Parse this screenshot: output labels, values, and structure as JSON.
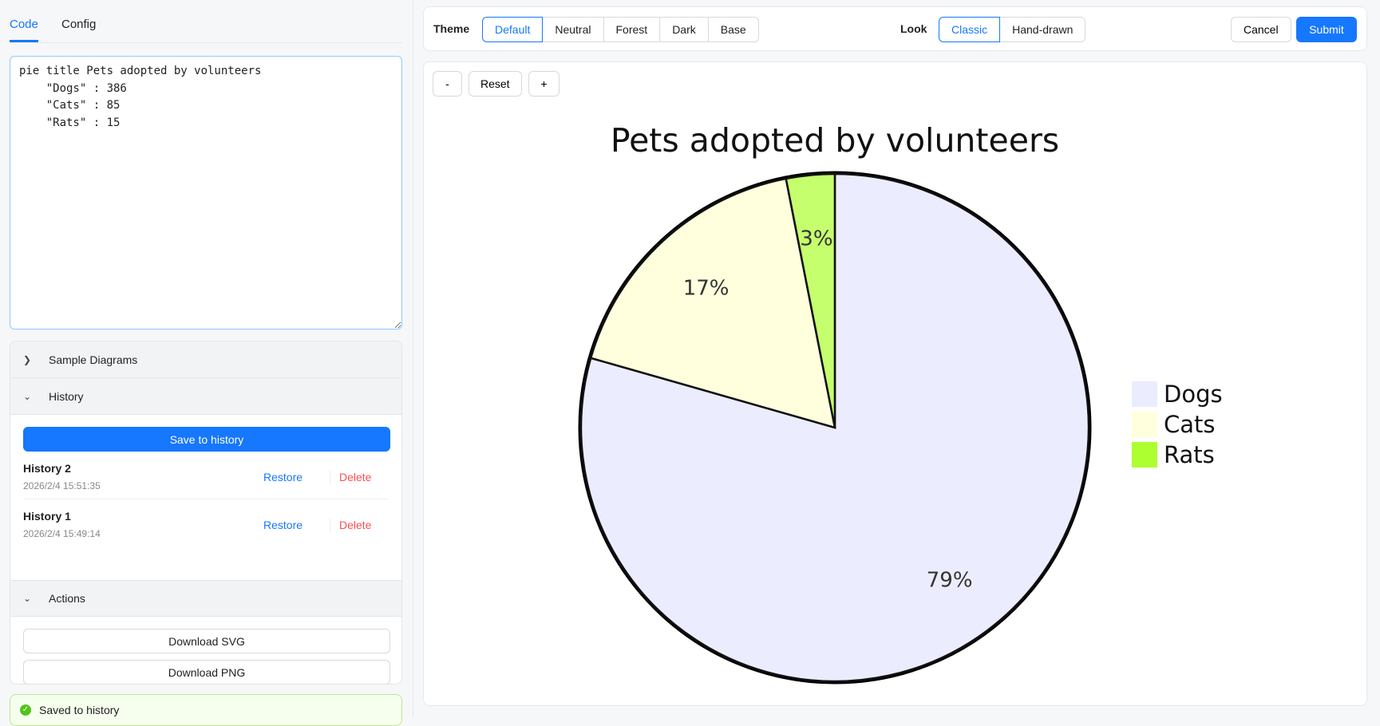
{
  "tabs": [
    {
      "label": "Code"
    },
    {
      "label": "Config"
    }
  ],
  "code": "pie title Pets adopted by volunteers\n    \"Dogs\" : 386\n    \"Cats\" : 85\n    \"Rats\" : 15",
  "panels": {
    "sample": "Sample Diagrams",
    "history": "History",
    "actions": "Actions"
  },
  "save_label": "Save to history",
  "history": [
    {
      "title": "History 2",
      "date": "2026/2/4 15:51:35",
      "restore": "Restore",
      "delete": "Delete"
    },
    {
      "title": "History 1",
      "date": "2026/2/4 15:49:14",
      "restore": "Restore",
      "delete": "Delete"
    }
  ],
  "download_svg": "Download SVG",
  "download_png": "Download PNG",
  "saved_msg": "Saved to history",
  "toolbar": {
    "theme_label": "Theme",
    "themes": [
      "Default",
      "Neutral",
      "Forest",
      "Dark",
      "Base"
    ],
    "look_label": "Look",
    "looks": [
      "Classic",
      "Hand-drawn"
    ],
    "cancel": "Cancel",
    "submit": "Submit"
  },
  "zoom": {
    "minus": "-",
    "reset": "Reset",
    "plus": "+"
  },
  "chart_data": {
    "type": "pie",
    "title": "Pets adopted by volunteers",
    "categories": [
      "Dogs",
      "Cats",
      "Rats"
    ],
    "values": [
      386,
      85,
      15
    ],
    "labels": [
      "79%",
      "17%",
      "3%"
    ],
    "colors": [
      "#ECECFF",
      "#ffffde",
      "#adff2f"
    ],
    "legend": "right"
  }
}
